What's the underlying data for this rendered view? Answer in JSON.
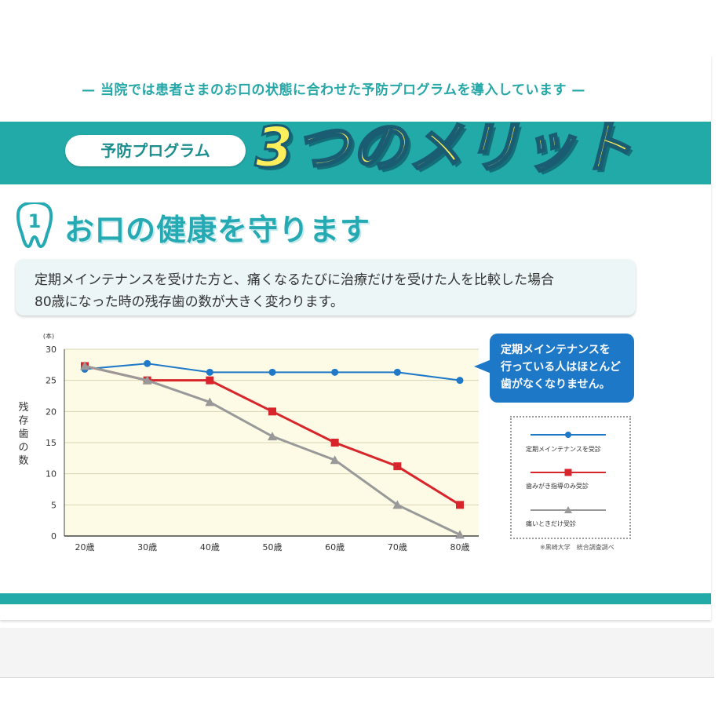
{
  "intro": "— 当院では患者さまのお口の状態に合わせた予防プログラムを導入しています —",
  "header": {
    "pill_label": "予防プログラム",
    "big_title": "3つのメリット"
  },
  "section": {
    "number": "1",
    "title": "お口の健康を守ります"
  },
  "description": {
    "line1": "定期メインテナンスを受けた方と、痛くなるたびに治療だけを受けた人を比較した場合",
    "line2": "80歳になった時の残存歯の数が大きく変わります。"
  },
  "callout": {
    "line1": "定期メインテナンスを",
    "line2": "行っている人はほとんど",
    "line3": "歯がなくなりません。"
  },
  "source": "※黒崎大学　統合調査調べ",
  "colors": {
    "teal": "#22aaa9",
    "blue": "#1f78c8",
    "red": "#d8252b",
    "gray": "#999999"
  },
  "chart_data": {
    "type": "line",
    "unit_label": "(本)",
    "ylabel": "残存歯の数",
    "categories": [
      "20歳",
      "30歳",
      "40歳",
      "50歳",
      "60歳",
      "70歳",
      "80歳"
    ],
    "ylim": [
      0,
      30
    ],
    "yticks": [
      0,
      5,
      10,
      15,
      20,
      25,
      30
    ],
    "grid": true,
    "legend_position": "right",
    "series": [
      {
        "name": "定期メインテナンスを受診",
        "color": "#1f78c8",
        "marker": "circle",
        "values": [
          26.8,
          27.7,
          26.3,
          26.3,
          26.3,
          26.3,
          25.0
        ]
      },
      {
        "name": "歯みがき指導のみ受診",
        "color": "#d8252b",
        "marker": "square",
        "values": [
          27.3,
          25.0,
          25.0,
          20.0,
          15.0,
          11.2,
          5.0
        ]
      },
      {
        "name": "痛いときだけ受診",
        "color": "#999999",
        "marker": "triangle",
        "values": [
          27.3,
          25.0,
          21.5,
          16.0,
          12.2,
          5.0,
          0.2
        ]
      }
    ]
  }
}
